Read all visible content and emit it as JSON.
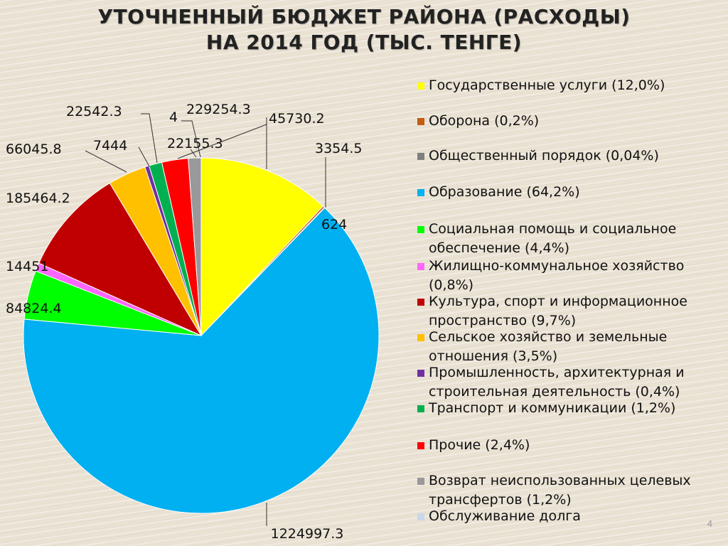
{
  "slide": {
    "title_line1": "УТОЧНЕННЫЙ БЮДЖЕТ РАЙОНА (РАСХОДЫ)",
    "title_line2": "НА 2014 ГОД (ТЫС. ТЕНГЕ)",
    "page_number": "4"
  },
  "chart_data": {
    "type": "pie",
    "title": "УТОЧНЕННЫЙ БЮДЖЕТ РАЙОНА (РАСХОДЫ) НА 2014 ГОД (ТЫС. ТЕНГЕ)",
    "legend_position": "right",
    "slices": [
      {
        "label": "Государственные услуги (12,0%)",
        "value": 229254.3,
        "value_label": "229254.3",
        "color": "#ffff00"
      },
      {
        "label": "Оборона (0,2%)",
        "value": 3354.5,
        "value_label": "3354.5",
        "color": "#c55a11"
      },
      {
        "label": "Общественный порядок (0,04%)",
        "value": 624,
        "value_label": "624",
        "color": "#7f7f7f"
      },
      {
        "label": "Образование (64,2%)",
        "value": 1224997.3,
        "value_label": "1224997.3",
        "color": "#00b0f0"
      },
      {
        "label": "Социальная помощь и социальное обеспечение (4,4%)",
        "value": 84824.4,
        "value_label": "84824.4",
        "color": "#00ff00"
      },
      {
        "label": "Жилищно-коммунальное хозяйство (0,8%)",
        "value": 14451,
        "value_label": "14451",
        "color": "#ff66ff"
      },
      {
        "label": "Культура, спорт и информационное пространство (9,7%)",
        "value": 185464.2,
        "value_label": "185464.2",
        "color": "#c00000"
      },
      {
        "label": "Сельское хозяйство и земельные отношения (3,5%)",
        "value": 66045.8,
        "value_label": "66045.8",
        "color": "#ffc000"
      },
      {
        "label": "Промышленность, архитектурная и строительная деятельность (0,4%)",
        "value": 7444,
        "value_label": "7444",
        "color": "#7030a0"
      },
      {
        "label": "Транспорт и коммуникации (1,2%)",
        "value": 22542.3,
        "value_label": "22542.3",
        "color": "#00b050"
      },
      {
        "label": "Прочие (2,4%)",
        "value": 45730.2,
        "value_label": "45730.2",
        "color": "#ff0000"
      },
      {
        "label": "Возврат неиспользованных целевых трансфертов (1,2%)",
        "value": 22155.3,
        "value_label": "22155.3",
        "color": "#999999"
      },
      {
        "label": "Обслуживание долга",
        "value": 4,
        "value_label": "4",
        "color": "#c9d8ea"
      }
    ]
  }
}
